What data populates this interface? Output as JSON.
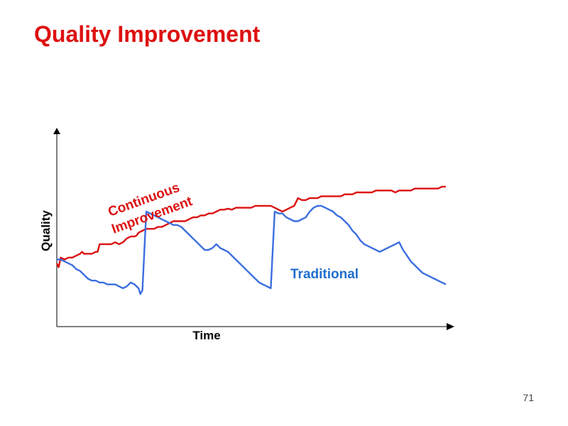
{
  "slide": {
    "title": "Quality Improvement",
    "page_number": "71"
  },
  "colors": {
    "title": "#dd1111",
    "continuous": "#dd1111",
    "traditional": "#3b6ee0",
    "axis": "#000000"
  },
  "chart_data": {
    "type": "line",
    "title": "",
    "xlabel": "Time",
    "ylabel": "Quality",
    "xlim": [
      0,
      100
    ],
    "ylim": [
      0,
      100
    ],
    "grid": false,
    "ticks": false,
    "series": [
      {
        "name": "Continuous Improvement",
        "label_lines": [
          "Continuous",
          "Improvement"
        ],
        "color": "#dd1111",
        "points": [
          [
            0,
            33
          ],
          [
            0.5,
            31
          ],
          [
            1,
            36
          ],
          [
            2,
            35
          ],
          [
            3,
            36
          ],
          [
            4,
            36
          ],
          [
            5,
            37
          ],
          [
            6,
            38
          ],
          [
            6.5,
            39
          ],
          [
            7,
            38
          ],
          [
            8,
            38
          ],
          [
            9,
            38
          ],
          [
            10,
            39
          ],
          [
            10.5,
            39
          ],
          [
            11,
            43
          ],
          [
            12,
            43
          ],
          [
            13,
            43
          ],
          [
            14,
            43
          ],
          [
            15,
            44
          ],
          [
            16,
            43
          ],
          [
            17,
            44
          ],
          [
            17.5,
            45
          ],
          [
            18,
            46
          ],
          [
            19,
            47
          ],
          [
            20,
            47
          ],
          [
            20.5,
            47.5
          ],
          [
            21,
            49
          ],
          [
            22,
            50
          ],
          [
            23,
            51
          ],
          [
            24,
            51
          ],
          [
            25,
            51
          ],
          [
            26,
            52
          ],
          [
            27,
            52
          ],
          [
            28,
            53
          ],
          [
            29,
            54
          ],
          [
            30,
            55
          ],
          [
            31,
            55
          ],
          [
            32,
            55
          ],
          [
            33,
            55
          ],
          [
            34,
            56
          ],
          [
            35,
            57
          ],
          [
            36,
            57
          ],
          [
            37,
            58
          ],
          [
            38,
            58
          ],
          [
            39,
            59
          ],
          [
            40,
            59
          ],
          [
            41,
            60
          ],
          [
            42,
            61
          ],
          [
            43,
            61
          ],
          [
            44,
            61.5
          ],
          [
            45,
            61
          ],
          [
            46,
            62
          ],
          [
            47,
            62
          ],
          [
            48,
            62
          ],
          [
            49,
            62
          ],
          [
            50,
            62
          ],
          [
            51,
            63
          ],
          [
            52,
            63
          ],
          [
            53,
            63
          ],
          [
            54,
            63
          ],
          [
            55,
            63
          ],
          [
            56,
            62
          ],
          [
            57,
            61
          ],
          [
            58,
            60
          ],
          [
            59,
            61
          ],
          [
            60,
            62
          ],
          [
            61,
            63
          ],
          [
            62,
            67
          ],
          [
            63,
            66
          ],
          [
            64,
            66
          ],
          [
            65,
            67
          ],
          [
            66,
            67
          ],
          [
            67,
            67
          ],
          [
            68,
            68
          ],
          [
            69,
            68
          ],
          [
            70,
            68
          ],
          [
            71,
            68
          ],
          [
            72,
            68
          ],
          [
            73,
            68
          ],
          [
            74,
            69
          ],
          [
            75,
            69
          ],
          [
            76,
            69
          ],
          [
            77,
            70
          ],
          [
            78,
            70
          ],
          [
            79,
            70
          ],
          [
            80,
            70
          ],
          [
            81,
            70
          ],
          [
            82,
            71
          ],
          [
            83,
            71
          ],
          [
            84,
            71
          ],
          [
            85,
            71
          ],
          [
            86,
            71
          ],
          [
            87,
            70
          ],
          [
            88,
            71
          ],
          [
            89,
            71
          ],
          [
            90,
            71
          ],
          [
            91,
            71
          ],
          [
            92,
            72
          ],
          [
            93,
            72
          ],
          [
            94,
            72
          ],
          [
            95,
            72
          ],
          [
            96,
            72
          ],
          [
            97,
            72
          ],
          [
            98,
            72
          ],
          [
            99,
            73
          ],
          [
            100,
            73
          ]
        ]
      },
      {
        "name": "Traditional",
        "label_lines": [
          "Traditional"
        ],
        "color": "#3b6ee0",
        "points": [
          [
            0,
            35
          ],
          [
            1,
            35
          ],
          [
            2,
            34
          ],
          [
            3,
            33
          ],
          [
            4,
            32
          ],
          [
            5,
            30
          ],
          [
            6,
            29
          ],
          [
            7,
            27
          ],
          [
            8,
            25
          ],
          [
            9,
            24
          ],
          [
            10,
            24
          ],
          [
            11,
            23
          ],
          [
            12,
            23
          ],
          [
            13,
            22
          ],
          [
            14,
            22
          ],
          [
            15,
            22
          ],
          [
            16,
            21
          ],
          [
            17,
            20
          ],
          [
            18,
            21
          ],
          [
            19,
            23
          ],
          [
            20,
            22
          ],
          [
            21,
            20
          ],
          [
            21.5,
            17
          ],
          [
            22,
            19
          ],
          [
            23,
            60
          ],
          [
            24,
            59
          ],
          [
            25,
            58
          ],
          [
            26,
            57
          ],
          [
            27,
            56
          ],
          [
            28,
            55
          ],
          [
            29,
            54
          ],
          [
            30,
            53
          ],
          [
            31,
            53
          ],
          [
            32,
            52
          ],
          [
            33,
            50
          ],
          [
            34,
            48
          ],
          [
            35,
            46
          ],
          [
            36,
            44
          ],
          [
            37,
            42
          ],
          [
            38,
            40
          ],
          [
            39,
            40
          ],
          [
            40,
            41
          ],
          [
            41,
            43
          ],
          [
            42,
            41
          ],
          [
            43,
            40
          ],
          [
            44,
            39
          ],
          [
            45,
            37
          ],
          [
            46,
            35
          ],
          [
            47,
            33
          ],
          [
            48,
            31
          ],
          [
            49,
            29
          ],
          [
            50,
            27
          ],
          [
            51,
            25
          ],
          [
            52,
            23
          ],
          [
            53,
            22
          ],
          [
            54,
            21
          ],
          [
            55,
            20
          ],
          [
            56,
            60
          ],
          [
            57,
            59
          ],
          [
            58,
            59
          ],
          [
            59,
            57
          ],
          [
            60,
            56
          ],
          [
            61,
            55
          ],
          [
            62,
            55
          ],
          [
            63,
            56
          ],
          [
            64,
            57
          ],
          [
            65,
            60
          ],
          [
            66,
            62
          ],
          [
            67,
            63
          ],
          [
            68,
            63
          ],
          [
            69,
            62
          ],
          [
            70,
            61
          ],
          [
            71,
            60
          ],
          [
            72,
            58
          ],
          [
            73,
            57
          ],
          [
            74,
            55
          ],
          [
            75,
            53
          ],
          [
            76,
            50
          ],
          [
            77,
            48
          ],
          [
            78,
            45
          ],
          [
            79,
            43
          ],
          [
            80,
            42
          ],
          [
            81,
            41
          ],
          [
            82,
            40
          ],
          [
            83,
            39
          ],
          [
            84,
            40
          ],
          [
            85,
            41
          ],
          [
            86,
            42
          ],
          [
            87,
            43
          ],
          [
            88,
            44
          ],
          [
            89,
            40
          ],
          [
            90,
            37
          ],
          [
            91,
            34
          ],
          [
            92,
            32
          ],
          [
            93,
            30
          ],
          [
            94,
            28
          ],
          [
            95,
            27
          ],
          [
            96,
            26
          ],
          [
            97,
            25
          ],
          [
            98,
            24
          ],
          [
            99,
            23
          ],
          [
            100,
            22
          ]
        ]
      }
    ]
  }
}
